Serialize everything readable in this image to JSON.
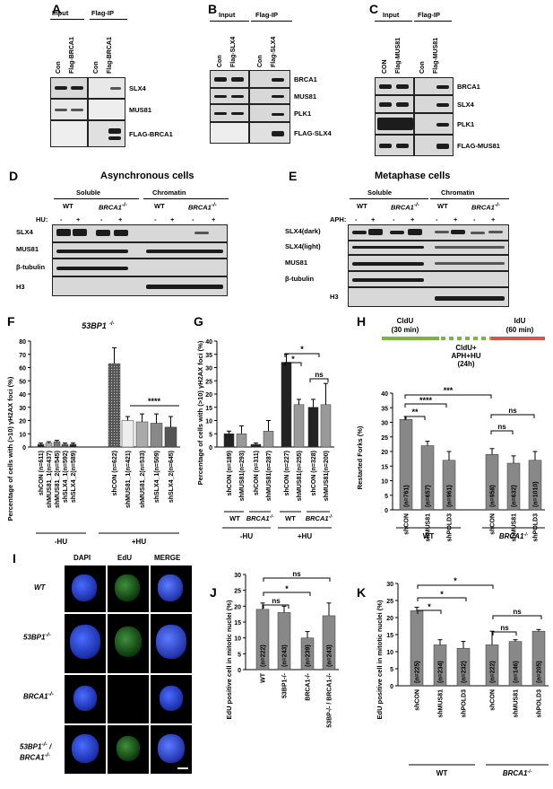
{
  "panels": {
    "A": "A",
    "B": "B",
    "C": "C",
    "D": "D",
    "E": "E",
    "F": "F",
    "G": "G",
    "H": "H",
    "I": "I",
    "J": "J",
    "K": "K"
  },
  "A": {
    "input": "Input",
    "flagip": "Flag-IP",
    "lanes": [
      "Con",
      "Flag-BRCA1",
      "Con",
      "Flag-BRCA1"
    ],
    "rows": [
      "SLX4",
      "MUS81",
      "FLAG-BRCA1"
    ]
  },
  "B": {
    "input": "Input",
    "flagip": "Flag-IP",
    "lanes": [
      "Con",
      "Flag-SLX4",
      "Con",
      "Flag-SLX4"
    ],
    "rows": [
      "BRCA1",
      "MUS81",
      "PLK1",
      "FLAG-SLX4"
    ]
  },
  "C": {
    "input": "Input",
    "flagip": "Flag-IP",
    "lanes": [
      "CON",
      "Flag-MUS81",
      "Con",
      "Flag-MUS81"
    ],
    "rows": [
      "BRCA1",
      "SLX4",
      "PLK1",
      "FLAG-MUS81"
    ]
  },
  "D": {
    "title": "Asynchronous cells",
    "soluble": "Soluble",
    "chromatin": "Chromatin",
    "wt": "WT",
    "brca": "BRCA1",
    "sup": "-/-",
    "hu": "HU:",
    "signs": [
      "-",
      "+",
      "-",
      "+",
      "-",
      "+",
      "-",
      "+"
    ],
    "rows": [
      "SLX4",
      "MUS81",
      "β-tubulin",
      "H3"
    ]
  },
  "E": {
    "title": "Metaphase cells",
    "soluble": "Soluble",
    "chromatin": "Chromatin",
    "wt": "WT",
    "brca": "BRCA1",
    "sup": "-/-",
    "aph": "APH:",
    "signs": [
      "-",
      "+",
      "-",
      "+",
      "-",
      "+",
      "-",
      "+"
    ],
    "rows": [
      "SLX4(dark)",
      "SLX4(light)",
      "MUS81",
      "β-tubulin",
      "H3"
    ]
  },
  "F": {
    "title": "53BP1",
    "title_sup": "-/-",
    "ylabel": "Percentage of cells with (>10) γH2AX foci (%)",
    "groups": [
      "-HU",
      "+HU"
    ],
    "sig": "****"
  },
  "G": {
    "ylabel": "Percentage of cells with (>10) γH2AX foci (%)",
    "groups": [
      "-HU",
      "+HU"
    ],
    "wt": "WT",
    "brca": "BRCA1",
    "sup": "-/-",
    "sig": [
      "*",
      "*",
      "ns"
    ]
  },
  "H": {
    "cldu": "CldU",
    "cldu_t": "(30 min)",
    "idu": "IdU",
    "idu_t": "(60 min)",
    "cldu2": "CldU+",
    "aphhu": "APH+HU",
    "t24": "(24h)",
    "ylabel": "Restarted Forks (%)",
    "wt": "WT",
    "brca": "BRCA1",
    "sup": "-/-",
    "sig": [
      "***",
      "****",
      "**",
      "ns",
      "ns"
    ]
  },
  "I": {
    "cols": [
      "DAPI",
      "EdU",
      "MERGE"
    ],
    "rows": [
      "WT",
      "53BP1",
      "BRCA1",
      "53BP1",
      "BRCA1"
    ],
    "sup": "-/-",
    "slash": "/"
  },
  "J": {
    "ylabel": "EdU positive cell in mitotic nuclei (%)",
    "sig": [
      "ns",
      "*",
      "ns"
    ]
  },
  "K": {
    "ylabel": "EdU positive cell in mitotic nuclei (%)",
    "wt": "WT",
    "brca": "BRCA1",
    "sup": "-/-",
    "sig": [
      "*",
      "*",
      "*",
      "ns",
      "ns"
    ]
  },
  "chart_data": [
    {
      "type": "bar",
      "panel": "F",
      "ylim": [
        0,
        80
      ],
      "yticks": [
        0,
        10,
        20,
        30,
        40,
        50,
        60,
        70,
        80
      ],
      "categories": [
        "shCON (n=611)",
        "shMUS81_1(n=437)",
        "shMUS81_2(n=545)",
        "shSLX4_1(n=592)",
        "shSLX4_2(n=589)",
        "shCON (n=622)",
        "shMUS81_1(n=421)",
        "shMUS81_2(n=533)",
        "shSLX4_1(n=509)",
        "shSLX4_2(n=645)"
      ],
      "values": [
        2,
        3,
        4,
        2,
        2,
        63,
        20,
        19,
        18,
        15
      ],
      "errors": [
        1,
        1,
        1,
        1,
        1,
        12,
        3,
        6,
        7,
        8
      ]
    },
    {
      "type": "bar",
      "panel": "G",
      "ylim": [
        0,
        40
      ],
      "yticks": [
        0,
        5,
        10,
        15,
        20,
        25,
        30,
        35,
        40
      ],
      "categories": [
        "shCON (n=189)",
        "shMUS81(n=293)",
        "shCON (n=311)",
        "shMUS81(n=287)",
        "shCON (n=227)",
        "shMUS81(n=255)",
        "shCON (n=328)",
        "shMUS81(n=200)"
      ],
      "values": [
        5,
        5,
        1,
        6,
        32,
        16,
        15,
        16
      ],
      "errors": [
        1,
        3,
        0.5,
        4,
        3,
        2,
        3,
        8
      ]
    },
    {
      "type": "bar",
      "panel": "H",
      "ylim": [
        0,
        40
      ],
      "yticks": [
        0,
        5,
        10,
        15,
        20,
        25,
        30,
        35,
        40
      ],
      "categories": [
        "shCON",
        "shMUS81",
        "shPOLD3",
        "shCON",
        "shMUS81",
        "shPOLD3"
      ],
      "n_labels": [
        "(n=761)",
        "(n=657)",
        "(n=961)",
        "(n=958)",
        "(n=632)",
        "(n=1010)"
      ],
      "values": [
        31,
        22,
        17,
        19,
        16,
        17
      ],
      "errors": [
        1,
        1.5,
        3,
        2,
        2.5,
        3
      ]
    },
    {
      "type": "bar",
      "panel": "J",
      "ylim": [
        0,
        30
      ],
      "yticks": [
        0,
        5,
        10,
        15,
        20,
        25,
        30
      ],
      "categories": [
        "WT",
        "53BP1-/-",
        "BRCA1-/-",
        "53BP-/- / BRCA1-/-"
      ],
      "n_labels": [
        "(n=222)",
        "(n=243)",
        "(n=239)",
        "(n=243)"
      ],
      "values": [
        19,
        18,
        10,
        17
      ],
      "errors": [
        2,
        2,
        2,
        4
      ]
    },
    {
      "type": "bar",
      "panel": "K",
      "ylim": [
        0,
        30
      ],
      "yticks": [
        0,
        5,
        10,
        15,
        20,
        25,
        30
      ],
      "categories": [
        "shCON",
        "shMUS81",
        "shPOLD3",
        "shCON",
        "shMUS81",
        "shPOLD3"
      ],
      "n_labels": [
        "(n=225)",
        "(n=234)",
        "(n=232)",
        "(n=222)",
        "(n=146)",
        "(n=205)"
      ],
      "values": [
        22,
        12,
        11,
        12,
        13,
        16
      ],
      "errors": [
        1,
        1.5,
        2,
        4,
        0.5,
        0.5
      ]
    }
  ]
}
